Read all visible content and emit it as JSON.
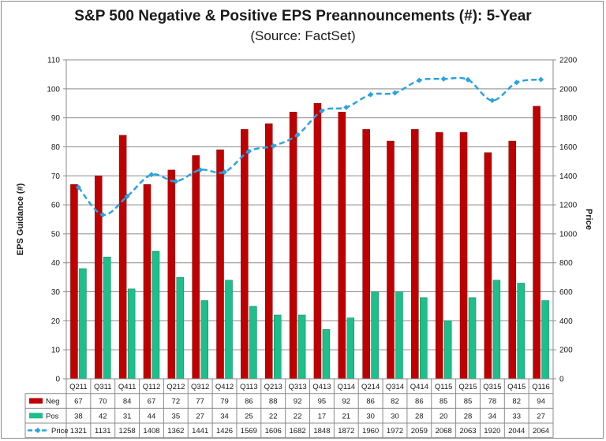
{
  "chart_data": {
    "type": "bar",
    "title": "S&P 500 Negative & Positive EPS Preannouncements (#): 5-Year",
    "subtitle": "(Source: FactSet)",
    "categories": [
      "Q211",
      "Q311",
      "Q411",
      "Q112",
      "Q212",
      "Q312",
      "Q412",
      "Q113",
      "Q213",
      "Q313",
      "Q413",
      "Q114",
      "Q214",
      "Q314",
      "Q414",
      "Q115",
      "Q215",
      "Q315",
      "Q415",
      "Q116"
    ],
    "series": [
      {
        "name": "Neg",
        "type": "bar",
        "color": "#c00000",
        "axis": "left",
        "values": [
          67,
          70,
          84,
          67,
          72,
          77,
          79,
          86,
          88,
          92,
          95,
          92,
          86,
          82,
          86,
          85,
          85,
          78,
          82,
          94
        ]
      },
      {
        "name": "Pos",
        "type": "bar",
        "color": "#1dbf8a",
        "axis": "left",
        "values": [
          38,
          42,
          31,
          44,
          35,
          27,
          34,
          25,
          22,
          22,
          17,
          21,
          30,
          30,
          28,
          20,
          28,
          34,
          33,
          27
        ]
      },
      {
        "name": "Price",
        "type": "line",
        "color": "#2aa3df",
        "axis": "right",
        "values": [
          1321,
          1131,
          1258,
          1408,
          1362,
          1441,
          1426,
          1569,
          1606,
          1682,
          1848,
          1872,
          1960,
          1972,
          2059,
          2068,
          2063,
          1920,
          2044,
          2064
        ]
      }
    ],
    "ylabel": "EPS Guidance (#)",
    "y2label": "Price",
    "ylim": [
      0,
      110
    ],
    "ystep": 10,
    "y2lim": [
      0,
      2200
    ],
    "y2step": 200,
    "legend": "data-table-below"
  }
}
